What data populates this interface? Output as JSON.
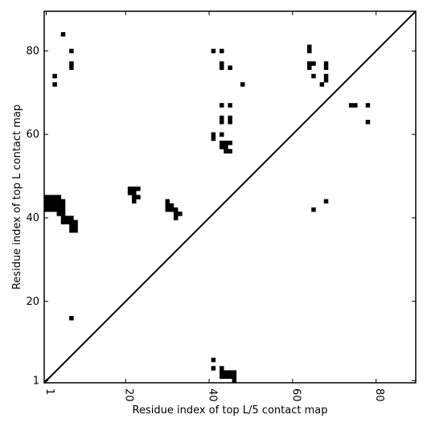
{
  "chart_data": {
    "type": "heatmap",
    "title": "",
    "xlabel": "Residue index of top L/5 contact map",
    "ylabel": "Residue index of top L contact map",
    "xlim": [
      1,
      90
    ],
    "ylim": [
      1,
      90
    ],
    "xticks": [
      1,
      20,
      40,
      60,
      80
    ],
    "yticks": [
      1,
      20,
      40,
      60,
      80
    ],
    "xtick_labels": [
      "1",
      "20",
      "40",
      "60",
      "80"
    ],
    "ytick_labels": [
      "1",
      "20",
      "40",
      "60",
      "80"
    ],
    "diagonal": true,
    "grid": false,
    "colors": {
      "contact": "#000000",
      "background": "#ffffff"
    },
    "upper_triangle_contacts": [
      [
        5,
        84
      ],
      [
        7,
        80
      ],
      [
        7,
        77
      ],
      [
        7,
        76
      ],
      [
        3,
        74
      ],
      [
        3,
        72
      ],
      [
        41,
        80
      ],
      [
        43,
        80
      ],
      [
        43,
        77
      ],
      [
        43,
        76
      ],
      [
        45,
        76
      ],
      [
        48,
        72
      ],
      [
        43,
        67
      ],
      [
        45,
        67
      ],
      [
        43,
        64
      ],
      [
        43,
        63
      ],
      [
        45,
        64
      ],
      [
        45,
        63
      ],
      [
        41,
        60
      ],
      [
        41,
        59
      ],
      [
        43,
        60
      ],
      [
        43,
        58
      ],
      [
        44,
        58
      ],
      [
        45,
        58
      ],
      [
        44,
        57
      ],
      [
        43,
        57
      ],
      [
        44,
        56
      ],
      [
        45,
        56
      ],
      [
        64,
        81
      ],
      [
        64,
        80
      ],
      [
        64,
        77
      ],
      [
        65,
        77
      ],
      [
        64,
        76
      ],
      [
        65,
        74
      ],
      [
        68,
        77
      ],
      [
        68,
        76
      ],
      [
        68,
        74
      ],
      [
        68,
        73
      ],
      [
        67,
        72
      ],
      [
        74,
        67
      ],
      [
        75,
        67
      ],
      [
        78,
        67
      ],
      [
        78,
        63
      ],
      [
        1,
        45
      ],
      [
        2,
        45
      ],
      [
        3,
        45
      ],
      [
        4,
        45
      ],
      [
        1,
        44
      ],
      [
        2,
        44
      ],
      [
        3,
        44
      ],
      [
        4,
        44
      ],
      [
        5,
        44
      ],
      [
        1,
        43
      ],
      [
        2,
        43
      ],
      [
        3,
        43
      ],
      [
        4,
        43
      ],
      [
        5,
        43
      ],
      [
        1,
        42
      ],
      [
        2,
        42
      ],
      [
        3,
        42
      ],
      [
        4,
        42
      ],
      [
        5,
        42
      ],
      [
        4,
        41
      ],
      [
        5,
        41
      ],
      [
        5,
        40
      ],
      [
        6,
        40
      ],
      [
        7,
        40
      ],
      [
        5,
        39
      ],
      [
        6,
        39
      ],
      [
        7,
        39
      ],
      [
        8,
        39
      ],
      [
        7,
        38
      ],
      [
        8,
        38
      ],
      [
        7,
        37
      ],
      [
        8,
        37
      ],
      [
        21,
        47
      ],
      [
        22,
        47
      ],
      [
        23,
        47
      ],
      [
        21,
        46
      ],
      [
        22,
        46
      ],
      [
        22,
        45
      ],
      [
        23,
        45
      ],
      [
        22,
        44
      ],
      [
        30,
        44
      ],
      [
        30,
        43
      ],
      [
        31,
        43
      ],
      [
        30,
        42
      ],
      [
        31,
        42
      ],
      [
        32,
        42
      ],
      [
        32,
        41
      ],
      [
        33,
        41
      ],
      [
        32,
        40
      ],
      [
        68,
        44
      ],
      [
        65,
        42
      ]
    ],
    "lower_triangle_contacts": [
      [
        7,
        16
      ],
      [
        41,
        6
      ],
      [
        41,
        4
      ],
      [
        43,
        4
      ],
      [
        43,
        3
      ],
      [
        44,
        3
      ],
      [
        45,
        3
      ],
      [
        46,
        3
      ],
      [
        43,
        2
      ],
      [
        44,
        2
      ],
      [
        45,
        2
      ],
      [
        46,
        2
      ],
      [
        46,
        1
      ]
    ]
  }
}
